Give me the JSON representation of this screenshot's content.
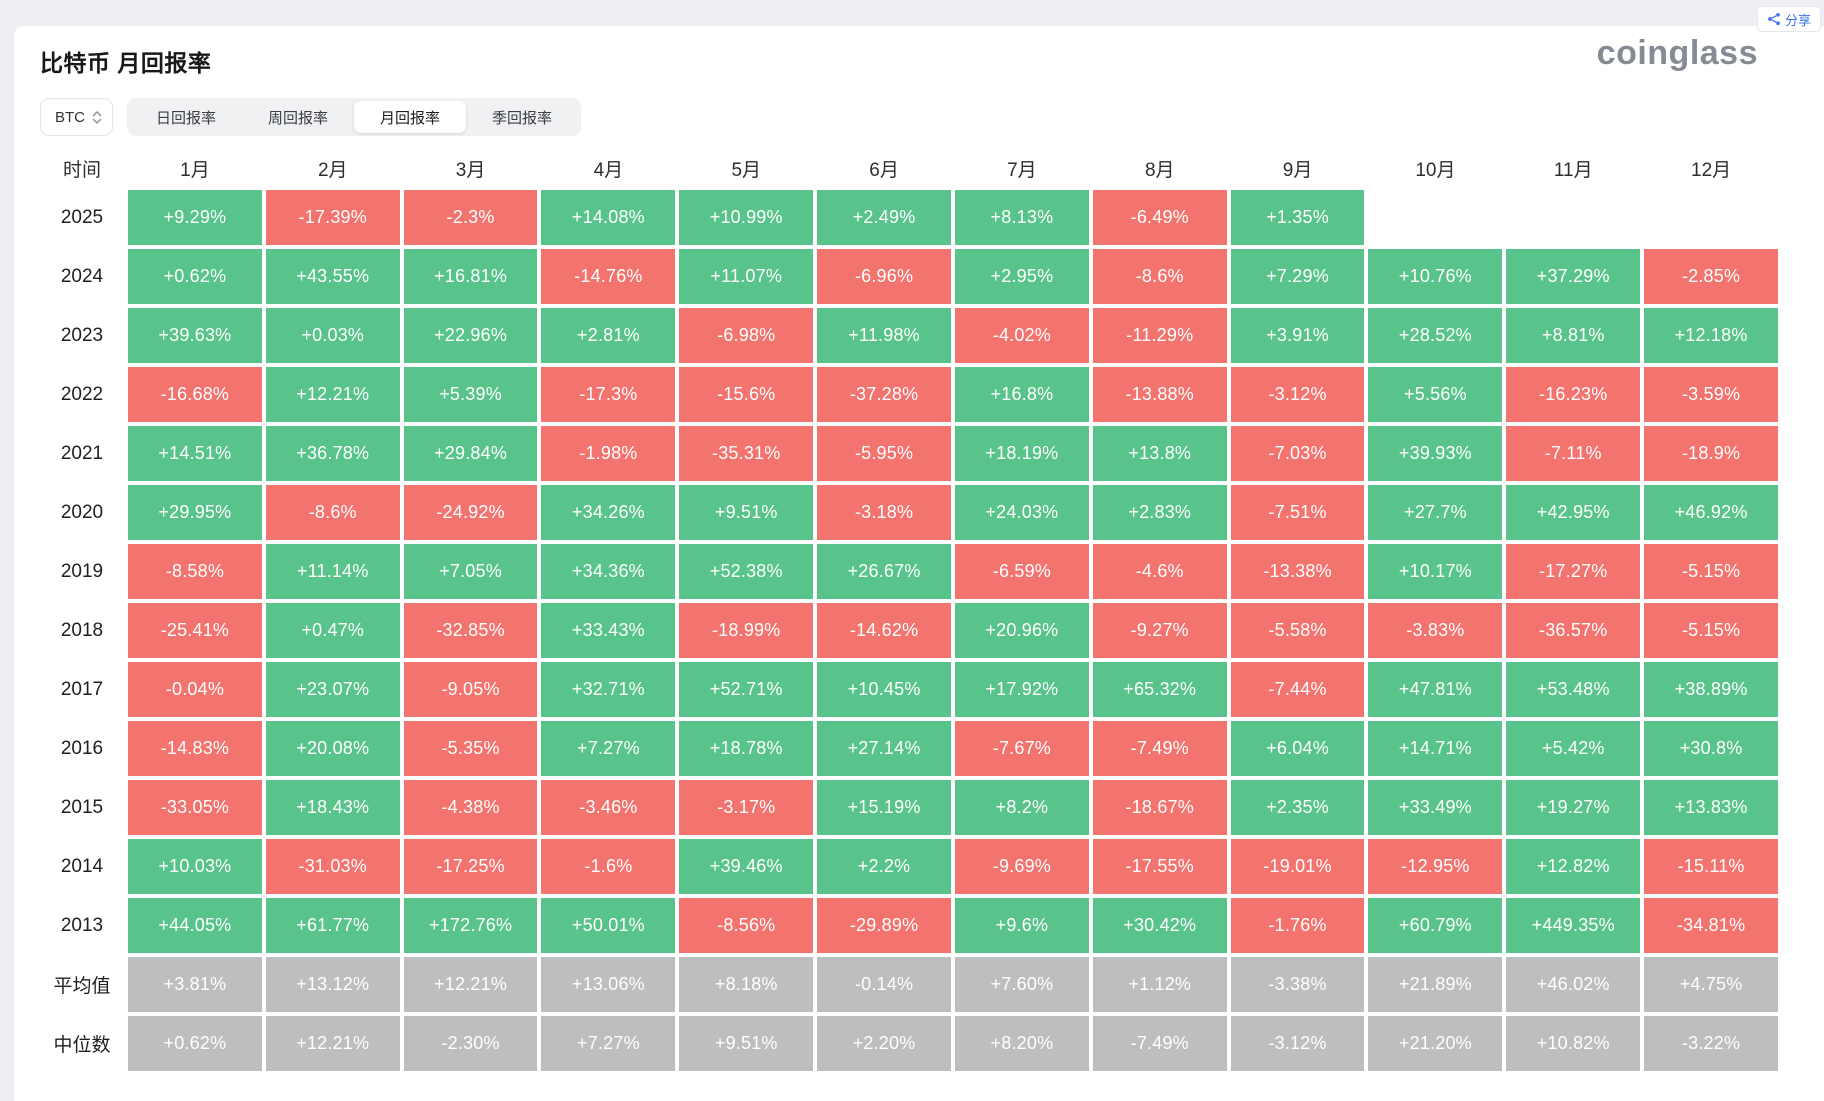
{
  "header": {
    "title": "比特币 月回报率",
    "logo_text": "coinglass",
    "share_label": "分享"
  },
  "controls": {
    "coin_selector_value": "BTC",
    "tabs": [
      {
        "label": "日回报率",
        "active": false
      },
      {
        "label": "周回报率",
        "active": false
      },
      {
        "label": "月回报率",
        "active": true
      },
      {
        "label": "季回报率",
        "active": false
      }
    ]
  },
  "colors": {
    "positive": "#58c48b",
    "negative": "#f3736f",
    "summary": "#bdbec0",
    "share_blue": "#3d6ff5"
  },
  "table": {
    "time_header": "时间",
    "month_headers": [
      "1月",
      "2月",
      "3月",
      "4月",
      "5月",
      "6月",
      "7月",
      "8月",
      "9月",
      "10月",
      "11月",
      "12月"
    ],
    "rows": [
      {
        "label": "2025",
        "type": "year",
        "values": [
          "+9.29%",
          "-17.39%",
          "-2.3%",
          "+14.08%",
          "+10.99%",
          "+2.49%",
          "+8.13%",
          "-6.49%",
          "+1.35%",
          "",
          "",
          ""
        ]
      },
      {
        "label": "2024",
        "type": "year",
        "values": [
          "+0.62%",
          "+43.55%",
          "+16.81%",
          "-14.76%",
          "+11.07%",
          "-6.96%",
          "+2.95%",
          "-8.6%",
          "+7.29%",
          "+10.76%",
          "+37.29%",
          "-2.85%"
        ]
      },
      {
        "label": "2023",
        "type": "year",
        "values": [
          "+39.63%",
          "+0.03%",
          "+22.96%",
          "+2.81%",
          "-6.98%",
          "+11.98%",
          "-4.02%",
          "-11.29%",
          "+3.91%",
          "+28.52%",
          "+8.81%",
          "+12.18%"
        ]
      },
      {
        "label": "2022",
        "type": "year",
        "values": [
          "-16.68%",
          "+12.21%",
          "+5.39%",
          "-17.3%",
          "-15.6%",
          "-37.28%",
          "+16.8%",
          "-13.88%",
          "-3.12%",
          "+5.56%",
          "-16.23%",
          "-3.59%"
        ]
      },
      {
        "label": "2021",
        "type": "year",
        "values": [
          "+14.51%",
          "+36.78%",
          "+29.84%",
          "-1.98%",
          "-35.31%",
          "-5.95%",
          "+18.19%",
          "+13.8%",
          "-7.03%",
          "+39.93%",
          "-7.11%",
          "-18.9%"
        ]
      },
      {
        "label": "2020",
        "type": "year",
        "values": [
          "+29.95%",
          "-8.6%",
          "-24.92%",
          "+34.26%",
          "+9.51%",
          "-3.18%",
          "+24.03%",
          "+2.83%",
          "-7.51%",
          "+27.7%",
          "+42.95%",
          "+46.92%"
        ]
      },
      {
        "label": "2019",
        "type": "year",
        "values": [
          "-8.58%",
          "+11.14%",
          "+7.05%",
          "+34.36%",
          "+52.38%",
          "+26.67%",
          "-6.59%",
          "-4.6%",
          "-13.38%",
          "+10.17%",
          "-17.27%",
          "-5.15%"
        ]
      },
      {
        "label": "2018",
        "type": "year",
        "values": [
          "-25.41%",
          "+0.47%",
          "-32.85%",
          "+33.43%",
          "-18.99%",
          "-14.62%",
          "+20.96%",
          "-9.27%",
          "-5.58%",
          "-3.83%",
          "-36.57%",
          "-5.15%"
        ]
      },
      {
        "label": "2017",
        "type": "year",
        "values": [
          "-0.04%",
          "+23.07%",
          "-9.05%",
          "+32.71%",
          "+52.71%",
          "+10.45%",
          "+17.92%",
          "+65.32%",
          "-7.44%",
          "+47.81%",
          "+53.48%",
          "+38.89%"
        ]
      },
      {
        "label": "2016",
        "type": "year",
        "values": [
          "-14.83%",
          "+20.08%",
          "-5.35%",
          "+7.27%",
          "+18.78%",
          "+27.14%",
          "-7.67%",
          "-7.49%",
          "+6.04%",
          "+14.71%",
          "+5.42%",
          "+30.8%"
        ]
      },
      {
        "label": "2015",
        "type": "year",
        "values": [
          "-33.05%",
          "+18.43%",
          "-4.38%",
          "-3.46%",
          "-3.17%",
          "+15.19%",
          "+8.2%",
          "-18.67%",
          "+2.35%",
          "+33.49%",
          "+19.27%",
          "+13.83%"
        ]
      },
      {
        "label": "2014",
        "type": "year",
        "values": [
          "+10.03%",
          "-31.03%",
          "-17.25%",
          "-1.6%",
          "+39.46%",
          "+2.2%",
          "-9.69%",
          "-17.55%",
          "-19.01%",
          "-12.95%",
          "+12.82%",
          "-15.11%"
        ]
      },
      {
        "label": "2013",
        "type": "year",
        "values": [
          "+44.05%",
          "+61.77%",
          "+172.76%",
          "+50.01%",
          "-8.56%",
          "-29.89%",
          "+9.6%",
          "+30.42%",
          "-1.76%",
          "+60.79%",
          "+449.35%",
          "-34.81%"
        ]
      },
      {
        "label": "平均值",
        "type": "summary",
        "values": [
          "+3.81%",
          "+13.12%",
          "+12.21%",
          "+13.06%",
          "+8.18%",
          "-0.14%",
          "+7.60%",
          "+1.12%",
          "-3.38%",
          "+21.89%",
          "+46.02%",
          "+4.75%"
        ]
      },
      {
        "label": "中位数",
        "type": "summary",
        "values": [
          "+0.62%",
          "+12.21%",
          "-2.30%",
          "+7.27%",
          "+9.51%",
          "+2.20%",
          "+8.20%",
          "-7.49%",
          "-3.12%",
          "+21.20%",
          "+10.82%",
          "-3.22%"
        ]
      }
    ]
  }
}
